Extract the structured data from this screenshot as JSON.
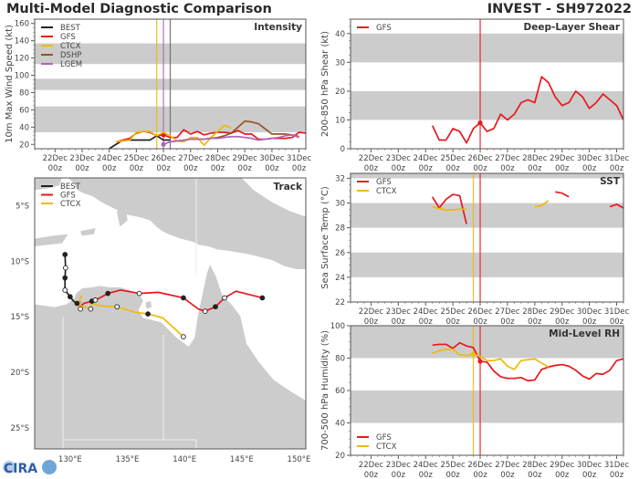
{
  "header": {
    "title": "Multi-Model Diagnostic Comparison",
    "storm": "INVEST - SH972022"
  },
  "logo": {
    "text": "CIRA"
  },
  "colors": {
    "BEST": "#222222",
    "GFS": "#e8181e",
    "CTCX": "#f0b90b",
    "DSHP": "#98531f",
    "LGEM": "#b063c0",
    "band": "#cccccc",
    "land": "#cccccc"
  },
  "chart_data": [
    {
      "type": "line",
      "title": "Intensity",
      "ylabel": "10m Max Wind Speed (kt)",
      "xlim": [
        "21Dec 06z",
        "31Dec 06z"
      ],
      "ylim": [
        15,
        165
      ],
      "yticks": [
        20,
        40,
        60,
        80,
        100,
        120,
        140,
        160
      ],
      "xticks": [
        [
          "22Dec",
          "00z"
        ],
        [
          "23Dec",
          "00z"
        ],
        [
          "24Dec",
          "00z"
        ],
        [
          "25Dec",
          "00z"
        ],
        [
          "26Dec",
          "00z"
        ],
        [
          "27Dec",
          "00z"
        ],
        [
          "28Dec",
          "00z"
        ],
        [
          "29Dec",
          "00z"
        ],
        [
          "30Dec",
          "00z"
        ],
        [
          "31Dec",
          "00z"
        ]
      ],
      "bands": [
        [
          34,
          64
        ],
        [
          83,
          96
        ],
        [
          113,
          137
        ]
      ],
      "legend": "top-left",
      "vlines": [
        {
          "x": "25Dec 18z",
          "color": "#f0b90b"
        },
        {
          "x": "26Dec 00z",
          "color": "#b063c0"
        },
        {
          "x": "26Dec 06z",
          "color": "#666666"
        }
      ],
      "series": [
        {
          "name": "BEST",
          "color": "#222222",
          "x": [
            "24Dec 00z",
            "24Dec 06z",
            "24Dec 12z",
            "24Dec 18z",
            "25Dec 00z",
            "25Dec 06z",
            "25Dec 12z",
            "25Dec 18z",
            "26Dec 00z",
            "26Dec 06z"
          ],
          "y": [
            15,
            20,
            25,
            25,
            25,
            25,
            25,
            30,
            25,
            25
          ]
        },
        {
          "name": "GFS",
          "color": "#e8181e",
          "marker": "26Dec 00z",
          "x": [
            "24Dec 06z",
            "24Dec 12z",
            "24Dec 18z",
            "25Dec 00z",
            "25Dec 06z",
            "25Dec 12z",
            "25Dec 18z",
            "26Dec 00z",
            "26Dec 06z",
            "26Dec 12z",
            "26Dec 18z",
            "27Dec 00z",
            "27Dec 06z",
            "27Dec 12z",
            "27Dec 18z",
            "28Dec 00z",
            "28Dec 06z",
            "28Dec 12z",
            "28Dec 18z",
            "29Dec 00z",
            "29Dec 06z",
            "29Dec 12z",
            "29Dec 18z",
            "30Dec 00z",
            "30Dec 06z",
            "30Dec 12z",
            "30Dec 18z",
            "31Dec 00z",
            "31Dec 06z"
          ],
          "y": [
            23,
            25,
            27,
            33,
            35,
            34,
            30,
            31,
            28,
            28,
            37,
            32,
            35,
            31,
            33,
            34,
            34,
            33,
            36,
            32,
            32,
            26,
            26,
            27,
            27,
            27,
            28,
            34,
            33
          ]
        },
        {
          "name": "CTCX",
          "color": "#f0b90b",
          "x": [
            "24Dec 06z",
            "24Dec 12z",
            "24Dec 18z",
            "25Dec 00z",
            "25Dec 06z",
            "25Dec 12z",
            "25Dec 18z",
            "26Dec 00z",
            "26Dec 06z",
            "26Dec 12z",
            "26Dec 18z",
            "27Dec 00z",
            "27Dec 06z",
            "27Dec 12z",
            "27Dec 18z",
            "28Dec 00z",
            "28Dec 06z",
            "28Dec 12z"
          ],
          "y": [
            23,
            24,
            25,
            34,
            35,
            35,
            30,
            34,
            30,
            24,
            23,
            28,
            28,
            19,
            28,
            35,
            42,
            39
          ]
        },
        {
          "name": "DSHP",
          "color": "#98531f",
          "x": [
            "26Dec 06z",
            "26Dec 12z",
            "26Dec 18z",
            "27Dec 00z",
            "27Dec 06z",
            "27Dec 12z",
            "27Dec 18z",
            "28Dec 00z",
            "28Dec 06z",
            "28Dec 12z",
            "28Dec 18z",
            "29Dec 00z",
            "29Dec 06z",
            "29Dec 12z",
            "29Dec 18z",
            "30Dec 00z",
            "30Dec 06z",
            "30Dec 12z",
            "30Dec 18z",
            "31Dec 00z"
          ],
          "y": [
            23,
            24,
            25,
            26,
            26,
            26,
            27,
            28,
            30,
            33,
            40,
            47,
            46,
            44,
            38,
            32,
            32,
            32,
            31,
            29
          ]
        },
        {
          "name": "LGEM",
          "color": "#b063c0",
          "marker": "26Dec 00z",
          "x": [
            "26Dec 00z",
            "26Dec 06z",
            "26Dec 12z",
            "26Dec 18z",
            "27Dec 00z",
            "27Dec 06z",
            "27Dec 12z",
            "27Dec 18z",
            "28Dec 00z",
            "28Dec 06z",
            "28Dec 12z",
            "28Dec 18z",
            "29Dec 00z",
            "29Dec 06z",
            "29Dec 12z",
            "29Dec 18z",
            "30Dec 00z",
            "30Dec 06z",
            "30Dec 12z",
            "30Dec 18z",
            "31Dec 00z"
          ],
          "y": [
            20,
            23,
            24,
            25,
            26,
            26,
            26,
            27,
            27,
            28,
            29,
            29,
            28,
            27,
            25,
            26,
            27,
            28,
            30,
            31,
            28
          ]
        }
      ]
    },
    {
      "type": "line",
      "title": "Deep-Layer Shear",
      "ylabel": "200-850 hPa Shear (kt)",
      "xlim": [
        "21Dec 06z",
        "31Dec 06z"
      ],
      "ylim": [
        0,
        45
      ],
      "yticks": [
        0,
        10,
        20,
        30,
        40
      ],
      "xticks": [
        [
          "22Dec",
          "00z"
        ],
        [
          "23Dec",
          "00z"
        ],
        [
          "24Dec",
          "00z"
        ],
        [
          "25Dec",
          "00z"
        ],
        [
          "26Dec",
          "00z"
        ],
        [
          "27Dec",
          "00z"
        ],
        [
          "28Dec",
          "00z"
        ],
        [
          "29Dec",
          "00z"
        ],
        [
          "30Dec",
          "00z"
        ],
        [
          "31Dec",
          "00z"
        ]
      ],
      "bands": [
        [
          10,
          20
        ],
        [
          30,
          40
        ]
      ],
      "legend": "top-left",
      "vlines": [
        {
          "x": "26Dec 00z",
          "color": "#e8181e"
        }
      ],
      "series": [
        {
          "name": "GFS",
          "color": "#e8181e",
          "marker": "26Dec 00z",
          "x": [
            "24Dec 06z",
            "24Dec 12z",
            "24Dec 18z",
            "25Dec 00z",
            "25Dec 06z",
            "25Dec 12z",
            "25Dec 18z",
            "26Dec 00z",
            "26Dec 06z",
            "26Dec 12z",
            "26Dec 18z",
            "27Dec 00z",
            "27Dec 06z",
            "27Dec 12z",
            "27Dec 18z",
            "28Dec 00z",
            "28Dec 06z",
            "28Dec 12z",
            "28Dec 18z",
            "29Dec 00z",
            "29Dec 06z",
            "29Dec 12z",
            "29Dec 18z",
            "30Dec 00z",
            "30Dec 06z",
            "30Dec 12z",
            "30Dec 18z",
            "31Dec 00z",
            "31Dec 06z"
          ],
          "y": [
            8,
            3,
            3,
            7,
            6,
            2,
            7,
            9,
            6,
            7,
            12,
            10,
            12,
            16,
            17,
            16,
            25,
            23,
            18,
            15,
            16,
            20,
            18,
            14,
            16,
            19,
            17,
            15,
            10
          ]
        }
      ]
    },
    {
      "type": "line",
      "title": "SST",
      "ylabel": "Sea Surface Temp (°C)",
      "xlim": [
        "21Dec 06z",
        "31Dec 06z"
      ],
      "ylim": [
        22,
        32.4
      ],
      "yticks": [
        22,
        24,
        26,
        28,
        30,
        32
      ],
      "xticks": [
        [
          "22Dec",
          "00z"
        ],
        [
          "23Dec",
          "00z"
        ],
        [
          "24Dec",
          "00z"
        ],
        [
          "25Dec",
          "00z"
        ],
        [
          "26Dec",
          "00z"
        ],
        [
          "27Dec",
          "00z"
        ],
        [
          "28Dec",
          "00z"
        ],
        [
          "29Dec",
          "00z"
        ],
        [
          "30Dec",
          "00z"
        ],
        [
          "31Dec",
          "00z"
        ]
      ],
      "bands": [
        [
          24,
          26
        ],
        [
          28,
          30
        ],
        [
          32,
          32.4
        ]
      ],
      "legend": "top-left",
      "vlines": [
        {
          "x": "25Dec 18z",
          "color": "#f0b90b"
        },
        {
          "x": "26Dec 00z",
          "color": "#e8181e"
        }
      ],
      "series": [
        {
          "name": "GFS",
          "color": "#e8181e",
          "x": [
            "24Dec 06z",
            "24Dec 12z",
            "24Dec 18z",
            "25Dec 00z",
            "25Dec 06z",
            "25Dec 12z",
            "25Dec 18z",
            "28Dec 18z",
            "29Dec 00z",
            "29Dec 06z",
            "29Dec 12z",
            "30Dec 18z",
            "31Dec 00z",
            "31Dec 06z"
          ],
          "y": [
            30.5,
            29.6,
            30.3,
            30.7,
            30.6,
            28.3,
            null,
            30.9,
            30.8,
            30.5,
            null,
            29.7,
            29.9,
            29.6
          ]
        },
        {
          "name": "CTCX",
          "color": "#f0b90b",
          "x": [
            "24Dec 06z",
            "24Dec 12z",
            "24Dec 18z",
            "25Dec 00z",
            "25Dec 06z",
            "25Dec 12z",
            "25Dec 18z",
            "28Dec 00z",
            "28Dec 06z",
            "28Dec 12z"
          ],
          "y": [
            29.7,
            29.55,
            29.45,
            29.45,
            29.5,
            29.5,
            null,
            29.7,
            29.8,
            30.2
          ]
        }
      ]
    },
    {
      "type": "line",
      "title": "Mid-Level RH",
      "ylabel": "700-500 hPa Humidity (%)",
      "xlim": [
        "21Dec 06z",
        "31Dec 06z"
      ],
      "ylim": [
        20,
        100
      ],
      "yticks": [
        20,
        40,
        60,
        80,
        100
      ],
      "xticks": [
        [
          "22Dec",
          "00z"
        ],
        [
          "23Dec",
          "00z"
        ],
        [
          "24Dec",
          "00z"
        ],
        [
          "25Dec",
          "00z"
        ],
        [
          "26Dec",
          "00z"
        ],
        [
          "27Dec",
          "00z"
        ],
        [
          "28Dec",
          "00z"
        ],
        [
          "29Dec",
          "00z"
        ],
        [
          "30Dec",
          "00z"
        ],
        [
          "31Dec",
          "00z"
        ]
      ],
      "bands": [
        [
          40,
          60
        ],
        [
          80,
          100
        ]
      ],
      "legend": "bottom-left",
      "vlines": [
        {
          "x": "25Dec 18z",
          "color": "#f0b90b"
        },
        {
          "x": "26Dec 00z",
          "color": "#e8181e"
        }
      ],
      "series": [
        {
          "name": "GFS",
          "color": "#e8181e",
          "marker": "26Dec 00z",
          "x": [
            "24Dec 06z",
            "24Dec 12z",
            "24Dec 18z",
            "25Dec 00z",
            "25Dec 06z",
            "25Dec 12z",
            "25Dec 18z",
            "26Dec 00z",
            "26Dec 06z",
            "26Dec 12z",
            "26Dec 18z",
            "27Dec 00z",
            "27Dec 06z",
            "27Dec 12z",
            "27Dec 18z",
            "28Dec 00z",
            "28Dec 06z",
            "28Dec 12z",
            "28Dec 18z",
            "29Dec 00z",
            "29Dec 06z",
            "29Dec 12z",
            "29Dec 18z",
            "30Dec 00z",
            "30Dec 06z",
            "30Dec 12z",
            "30Dec 18z",
            "31Dec 00z",
            "31Dec 06z"
          ],
          "y": [
            88,
            88.5,
            88.5,
            86,
            89.5,
            87.5,
            86.5,
            78,
            77.5,
            72,
            68.5,
            67.5,
            67.5,
            68,
            66,
            66.5,
            73,
            74.5,
            75.5,
            76,
            75,
            72.5,
            69,
            67,
            70.5,
            70,
            72.5,
            78.5,
            79.5
          ]
        },
        {
          "name": "CTCX",
          "color": "#f0b90b",
          "marker": "25Dec 18z",
          "x": [
            "24Dec 06z",
            "24Dec 12z",
            "24Dec 18z",
            "25Dec 00z",
            "25Dec 06z",
            "25Dec 12z",
            "25Dec 18z",
            "26Dec 00z",
            "26Dec 06z",
            "26Dec 12z",
            "26Dec 18z",
            "27Dec 00z",
            "27Dec 06z",
            "27Dec 12z",
            "27Dec 18z",
            "28Dec 00z",
            "28Dec 06z",
            "28Dec 12z"
          ],
          "y": [
            83,
            84.5,
            85.5,
            85.5,
            82,
            81.5,
            82.5,
            81,
            78.5,
            78.5,
            79.5,
            75,
            73,
            78.5,
            79,
            79.5,
            77,
            74.5
          ]
        }
      ]
    },
    {
      "type": "scatter",
      "title": "Track",
      "xlim": [
        126.9,
        150.6
      ],
      "ylim": [
        -26.9,
        -2.5
      ],
      "xticks": [
        {
          "value": 130,
          "label": "130°E"
        },
        {
          "value": 135,
          "label": "135°E"
        },
        {
          "value": 140,
          "label": "140°E"
        },
        {
          "value": 145,
          "label": "145°E"
        },
        {
          "value": 150,
          "label": "150°E"
        }
      ],
      "yticks": [
        {
          "value": -5,
          "label": "5°S"
        },
        {
          "value": -10,
          "label": "10°S"
        },
        {
          "value": -15,
          "label": "15°S"
        },
        {
          "value": -20,
          "label": "20°S"
        },
        {
          "value": -25,
          "label": "25°S"
        }
      ],
      "legend": "top-left",
      "series": [
        {
          "name": "BEST",
          "color": "#222222",
          "lon": [
            129.55,
            129.6,
            129.55,
            129.55,
            130.0,
            130.3,
            130.6
          ],
          "lat": [
            -9.4,
            -10.6,
            -11.5,
            -12.6,
            -13.2,
            -13.6,
            -13.8
          ],
          "markers": [
            "filled",
            "open",
            "filled",
            "open",
            "filled",
            "",
            "filled"
          ]
        },
        {
          "name": "GFS",
          "color": "#e8181e",
          "lon": [
            130.85,
            130.85,
            131.2,
            131.9,
            132.2,
            132.6,
            133.3,
            134.4,
            136.05,
            137.7,
            139.9,
            141.2,
            141.8,
            142.7,
            143.5,
            144.5,
            146.8
          ],
          "lat": [
            -13.6,
            -14.1,
            -13.8,
            -13.6,
            -13.5,
            -13.3,
            -12.9,
            -12.6,
            -12.9,
            -12.8,
            -13.3,
            -14.3,
            -14.5,
            -14.1,
            -13.3,
            -12.7,
            -13.3
          ],
          "markers": [
            "",
            "",
            "",
            "filled",
            "open",
            "",
            "filled",
            "",
            "open",
            "",
            "filled",
            "",
            "open",
            "filled",
            "open",
            "",
            "filled"
          ]
        },
        {
          "name": "CTCX",
          "color": "#f0b90b",
          "lon": [
            131.0,
            130.8,
            130.9,
            130.9,
            131.8,
            131.9,
            132.6,
            134.1,
            135.7,
            136.8,
            138.1,
            139.9
          ],
          "lat": [
            -13.1,
            -13.5,
            -14.3,
            -14.0,
            -14.3,
            -13.8,
            -14.0,
            -14.1,
            -14.6,
            -14.75,
            -15.1,
            -16.8
          ],
          "markers": [
            "",
            "",
            "open",
            "",
            "open",
            "",
            "",
            "open",
            "",
            "filled",
            "",
            "open"
          ]
        }
      ]
    }
  ]
}
